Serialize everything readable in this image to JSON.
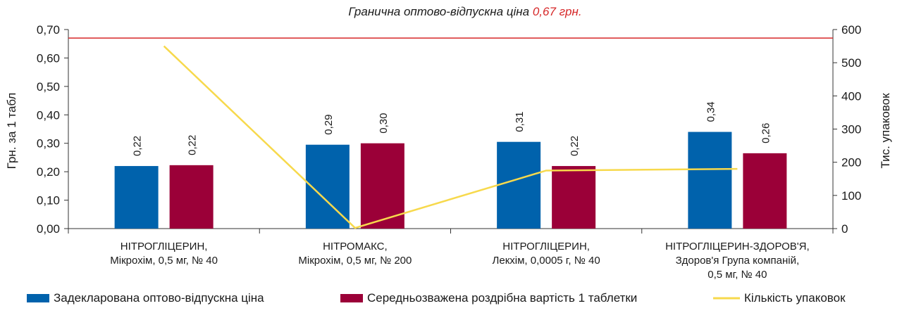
{
  "chart_data": {
    "type": "bar",
    "title_prefix": "Гранична оптово-відпускна ціна ",
    "title_highlight": "0,67 грн.",
    "reference_line": {
      "value": 0.67,
      "color": "#d62728"
    },
    "ylabel": "Грн. за 1 табл",
    "ylabel_right": "Тис. упаковок",
    "ylim": [
      0,
      0.7
    ],
    "ylim_right": [
      0,
      600
    ],
    "yticks": [
      "0,00",
      "0,10",
      "0,20",
      "0,30",
      "0,40",
      "0,50",
      "0,60",
      "0,70"
    ],
    "yticks_right": [
      "0",
      "100",
      "200",
      "300",
      "400",
      "500",
      "600"
    ],
    "categories": [
      [
        "НІТРОГЛІЦЕРИН,",
        "Мікрохім, 0,5 мг, № 40"
      ],
      [
        "НІТРОМАКС,",
        "Мікрохім, 0,5 мг, № 200"
      ],
      [
        "НІТРОГЛІЦЕРИН,",
        "Лекхім, 0,0005 г, № 40"
      ],
      [
        "НІТРОГЛІЦЕРИН-ЗДОРОВ'Я,",
        "Здоров'я Група компаній,",
        "0,5 мг, № 40"
      ]
    ],
    "series": [
      {
        "name": "Задекларована оптово-відпускна ціна",
        "type": "bar",
        "color": "#0062ac",
        "values": [
          0.22,
          0.295,
          0.305,
          0.34
        ],
        "labels": [
          "0,22",
          "0,29",
          "0,31",
          "0,34"
        ]
      },
      {
        "name": "Середньозважена роздрібна вартість 1 таблетки",
        "type": "bar",
        "color": "#9b0038",
        "values": [
          0.223,
          0.3,
          0.22,
          0.265
        ],
        "labels": [
          "0,22",
          "0,30",
          "0,22",
          "0,26"
        ]
      },
      {
        "name": "Кількість упаковок",
        "type": "line",
        "axis": "right",
        "color": "#f7d94c",
        "values": [
          550,
          2,
          175,
          180
        ]
      }
    ],
    "grid": false,
    "legend_position": "bottom"
  }
}
